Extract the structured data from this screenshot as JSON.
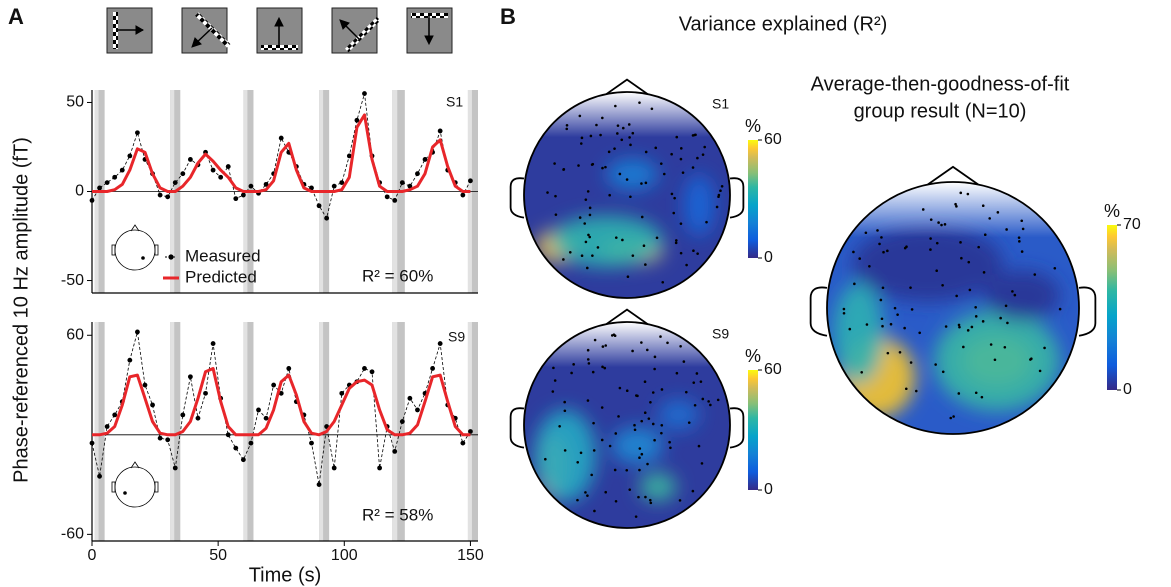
{
  "figure": {
    "panel_a": "A",
    "panel_b": "B",
    "ylabel": "Phase-referenced 10 Hz amplitude (fT)",
    "b_title": "Variance explained (R²)",
    "group_title": [
      "Average-then-goodness-of-fit",
      "group result (N=10)"
    ]
  },
  "chart_data": [
    {
      "type": "line",
      "label": "S1",
      "annotation": "R² = 60%",
      "legend": true,
      "x": [
        0,
        3,
        6,
        9,
        12,
        15,
        18,
        21,
        24,
        27,
        30,
        33,
        36,
        39,
        42,
        45,
        48,
        51,
        54,
        57,
        60,
        63,
        66,
        69,
        72,
        75,
        78,
        81,
        84,
        87,
        90,
        93,
        96,
        99,
        102,
        105,
        108,
        111,
        114,
        117,
        120,
        123,
        126,
        129,
        132,
        135,
        138,
        141,
        144,
        147,
        150
      ],
      "series": [
        {
          "name": "Measured",
          "color": "#000000",
          "values": [
            -5,
            2,
            5,
            8,
            12,
            20,
            33,
            18,
            10,
            -2,
            -3,
            5,
            10,
            18,
            15,
            22,
            12,
            8,
            14,
            -4,
            -2,
            3,
            -1,
            4,
            10,
            30,
            22,
            14,
            4,
            2,
            -8,
            -15,
            3,
            5,
            20,
            40,
            55,
            20,
            5,
            -3,
            -5,
            5,
            3,
            10,
            18,
            22,
            34,
            12,
            5,
            -2,
            6
          ]
        },
        {
          "name": "Predicted",
          "color": "#e8262a",
          "values": [
            0,
            0,
            0,
            1,
            4,
            12,
            24,
            22,
            10,
            2,
            0,
            0,
            3,
            8,
            16,
            21,
            17,
            12,
            8,
            2,
            0,
            0,
            0,
            1,
            6,
            22,
            27,
            12,
            2,
            0,
            0,
            0,
            0,
            1,
            8,
            36,
            43,
            18,
            3,
            0,
            0,
            0,
            1,
            3,
            10,
            25,
            29,
            14,
            3,
            0,
            0
          ]
        }
      ],
      "shaded": [
        [
          1,
          5
        ],
        [
          31,
          35
        ],
        [
          60,
          64
        ],
        [
          90,
          94
        ],
        [
          119,
          124
        ],
        [
          149,
          153
        ]
      ],
      "xlim": [
        0,
        153
      ],
      "ylim": [
        -57,
        57
      ],
      "yticks": [
        -50,
        0,
        50
      ]
    },
    {
      "type": "line",
      "label": "S9",
      "annotation": "R² = 58%",
      "legend": false,
      "xlabel": "Time (s)",
      "x": [
        0,
        3,
        6,
        9,
        12,
        15,
        18,
        21,
        24,
        27,
        30,
        33,
        36,
        39,
        42,
        45,
        48,
        51,
        54,
        57,
        60,
        63,
        66,
        69,
        72,
        75,
        78,
        81,
        84,
        87,
        90,
        93,
        96,
        99,
        102,
        105,
        108,
        111,
        114,
        117,
        120,
        123,
        126,
        129,
        132,
        135,
        138,
        141,
        144,
        147,
        150
      ],
      "series": [
        {
          "color": "#000000",
          "values": [
            -5,
            -25,
            5,
            12,
            20,
            45,
            62,
            30,
            18,
            -2,
            -3,
            -20,
            12,
            35,
            10,
            25,
            55,
            22,
            0,
            -8,
            -15,
            -5,
            15,
            10,
            30,
            25,
            40,
            20,
            12,
            -5,
            -30,
            5,
            -20,
            25,
            30,
            32,
            40,
            38,
            -20,
            5,
            -10,
            8,
            22,
            15,
            25,
            40,
            55,
            18,
            10,
            -5,
            2
          ]
        },
        {
          "color": "#e8262a",
          "values": [
            0,
            0,
            1,
            5,
            18,
            35,
            36,
            22,
            8,
            1,
            0,
            0,
            2,
            8,
            22,
            38,
            40,
            20,
            5,
            0,
            0,
            0,
            0,
            4,
            15,
            32,
            36,
            24,
            8,
            1,
            0,
            2,
            8,
            18,
            28,
            32,
            33,
            30,
            15,
            3,
            0,
            0,
            1,
            6,
            20,
            35,
            36,
            20,
            5,
            0,
            0
          ]
        }
      ],
      "shaded": [
        [
          1,
          5
        ],
        [
          31,
          35
        ],
        [
          60,
          64
        ],
        [
          90,
          94
        ],
        [
          119,
          124
        ],
        [
          149,
          153
        ]
      ],
      "xlim": [
        0,
        153
      ],
      "xticks": [
        0,
        50,
        100,
        150
      ],
      "ylim": [
        -64,
        68
      ],
      "yticks": [
        -60,
        60
      ]
    }
  ],
  "topomaps": [
    {
      "label": "S1",
      "colorbar": {
        "label": "%",
        "lim": [
          0,
          60
        ],
        "ticks": [
          0,
          60
        ]
      }
    },
    {
      "label": "S9",
      "colorbar": {
        "label": "%",
        "lim": [
          0,
          60
        ],
        "ticks": [
          0,
          60
        ]
      }
    },
    {
      "colorbar": {
        "label": "%",
        "lim": [
          0,
          70
        ],
        "ticks": [
          0,
          70
        ]
      }
    }
  ]
}
